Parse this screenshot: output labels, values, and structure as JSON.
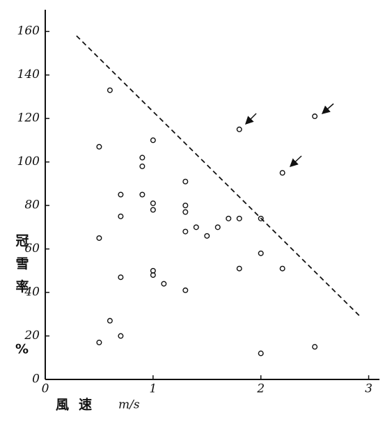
{
  "chart_data": {
    "type": "scatter",
    "ylabel": "冠雪率",
    "ylabel_unit": "%",
    "xlabel": "風速",
    "xlabel_unit": "m/s",
    "xlim": [
      0,
      3.1
    ],
    "ylim": [
      0,
      170
    ],
    "xticks": [
      0,
      1,
      2,
      3
    ],
    "yticks": [
      0,
      20,
      40,
      60,
      80,
      100,
      120,
      140,
      160
    ],
    "series": [
      {
        "color": "#111",
        "x": [
          0.6,
          0.5,
          1.0,
          0.9,
          0.9,
          1.3,
          0.7,
          0.9,
          1.0,
          1.0,
          1.3,
          1.3,
          0.7,
          1.8,
          2.5,
          2.2,
          0.5,
          1.3,
          1.4,
          1.5,
          1.6,
          1.7,
          1.8,
          2.0,
          2.0,
          1.8,
          2.2,
          1.0,
          1.0,
          1.1,
          0.7,
          1.3,
          0.6,
          0.7,
          0.5,
          2.0,
          2.5
        ],
        "values": [
          133,
          107,
          110,
          102,
          98,
          91,
          85,
          85,
          81,
          78,
          80,
          77,
          75,
          115,
          121,
          95,
          65,
          68,
          70,
          66,
          70,
          74,
          74,
          74,
          58,
          51,
          51,
          50,
          48,
          44,
          47,
          41,
          27,
          20,
          17,
          12,
          15
        ]
      }
    ],
    "reference_line": {
      "x": [
        0.29,
        2.92
      ],
      "y": [
        158,
        29
      ]
    }
  }
}
